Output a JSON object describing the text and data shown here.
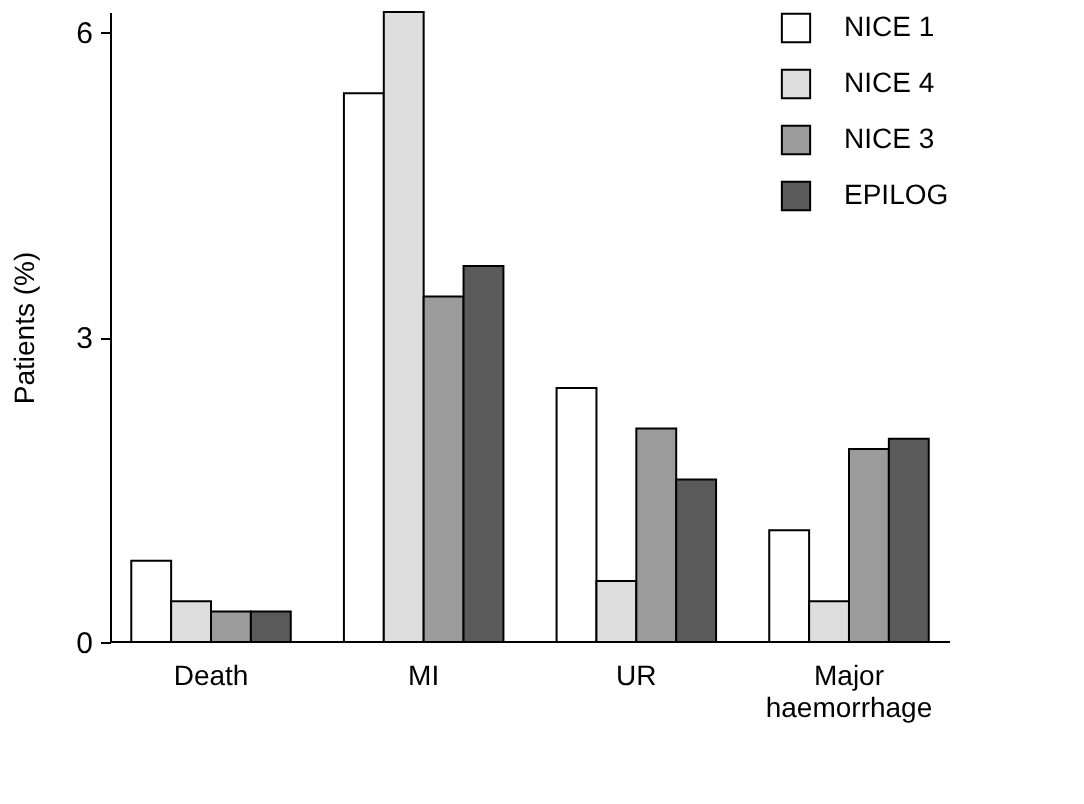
{
  "chart_data": {
    "type": "bar",
    "ylabel": "Patients (%)",
    "categories": [
      "Death",
      "MI",
      "UR",
      "Major haemorrhage"
    ],
    "series": [
      {
        "name": "NICE 1",
        "color": "#ffffff",
        "values": [
          0.8,
          5.4,
          2.5,
          1.1
        ]
      },
      {
        "name": "NICE 4",
        "color": "#dedede",
        "values": [
          0.4,
          6.2,
          0.6,
          0.4
        ]
      },
      {
        "name": "NICE 3",
        "color": "#9b9b9b",
        "values": [
          0.3,
          3.4,
          2.1,
          1.9
        ]
      },
      {
        "name": "EPILOG",
        "color": "#5a5a5a",
        "values": [
          0.3,
          3.7,
          1.6,
          2.0
        ]
      }
    ],
    "ylim": [
      0,
      6.2
    ],
    "yticks": [
      0,
      3,
      6
    ],
    "grid": false,
    "legend": "top right"
  }
}
